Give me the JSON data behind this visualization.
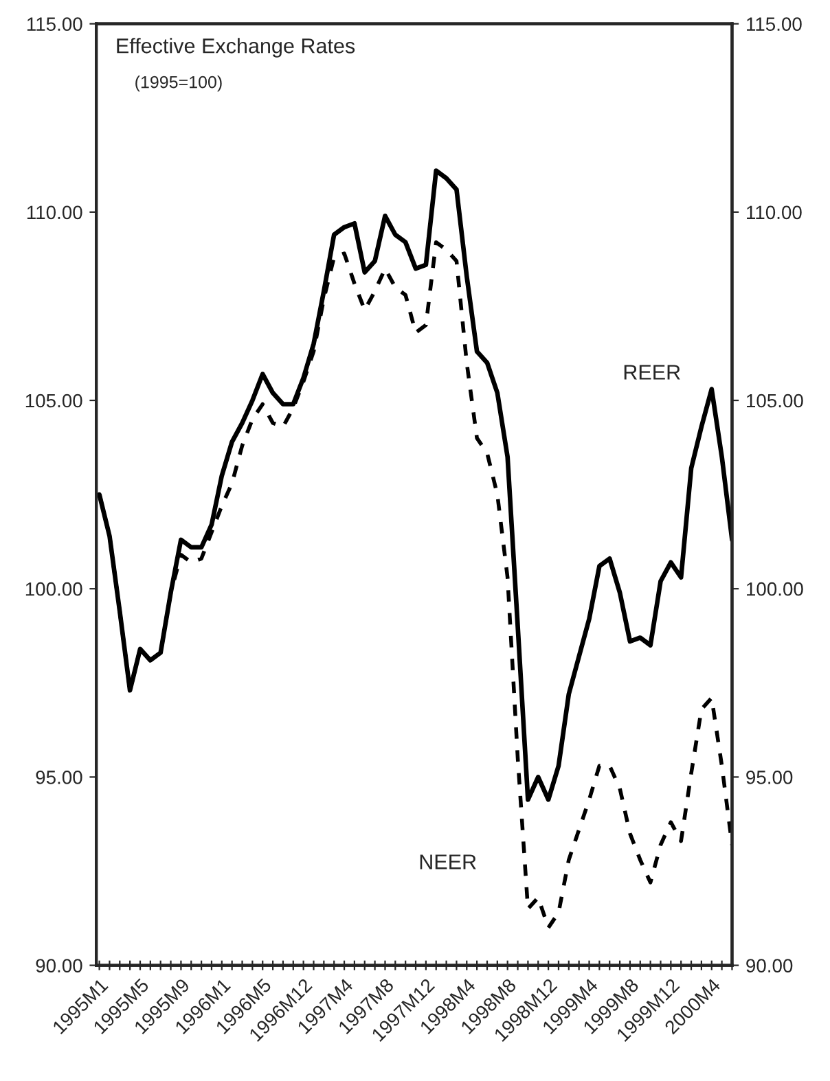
{
  "chart_data": {
    "type": "line",
    "title": "Effective Exchange Rates",
    "subtitle": "(1995=100)",
    "categories": [
      "1995M1",
      null,
      null,
      null,
      "1995M5",
      null,
      null,
      null,
      "1995M9",
      null,
      null,
      null,
      "1996M1",
      null,
      null,
      null,
      "1996M5",
      null,
      null,
      null,
      "1996M12",
      null,
      null,
      null,
      "1997M4",
      null,
      null,
      null,
      "1997M8",
      null,
      null,
      null,
      "1997M12",
      null,
      null,
      null,
      "1998M4",
      null,
      null,
      null,
      "1998M8",
      null,
      null,
      null,
      "1998M12",
      null,
      null,
      null,
      "1999M4",
      null,
      null,
      null,
      "1999M8",
      null,
      null,
      null,
      "1999M12",
      null,
      null,
      null,
      "2000M4",
      null,
      null
    ],
    "series": [
      {
        "name": "REER",
        "color": "#000000",
        "line_style": "solid",
        "values": [
          102.5,
          101.4,
          99.4,
          97.3,
          98.4,
          98.1,
          98.3,
          99.9,
          101.3,
          101.1,
          101.1,
          101.7,
          103.0,
          103.9,
          104.4,
          105.0,
          105.7,
          105.2,
          104.9,
          104.9,
          105.6,
          106.5,
          107.9,
          109.4,
          109.6,
          109.7,
          108.4,
          108.7,
          109.9,
          109.4,
          109.2,
          108.5,
          108.6,
          111.1,
          110.9,
          110.6,
          108.3,
          106.3,
          106.0,
          105.2,
          103.5,
          99.0,
          94.4,
          95.0,
          94.4,
          95.3,
          97.2,
          98.2,
          99.2,
          100.6,
          100.8,
          99.9,
          98.6,
          98.7,
          98.5,
          100.2,
          100.7,
          100.3,
          103.2,
          104.3,
          105.3,
          103.5,
          101.3
        ]
      },
      {
        "name": "NEER",
        "color": "#000000",
        "line_style": "dashed",
        "values": [
          102.5,
          101.4,
          99.4,
          97.3,
          98.4,
          98.1,
          98.3,
          99.9,
          100.9,
          100.7,
          100.8,
          101.5,
          102.2,
          102.8,
          103.8,
          104.5,
          104.9,
          104.4,
          104.3,
          104.8,
          105.5,
          106.3,
          107.7,
          108.8,
          108.9,
          108.1,
          107.4,
          107.9,
          108.5,
          108.0,
          107.8,
          106.8,
          107.0,
          109.2,
          109.0,
          108.7,
          106.0,
          104.0,
          103.6,
          102.5,
          100.3,
          95.5,
          91.5,
          91.8,
          91.0,
          91.4,
          92.8,
          93.6,
          94.4,
          95.3,
          95.3,
          94.7,
          93.5,
          92.8,
          92.2,
          93.2,
          93.8,
          93.3,
          95.1,
          96.8,
          97.1,
          95.3,
          93.2
        ]
      }
    ],
    "ylim": [
      90,
      115
    ],
    "yticks": [
      {
        "value": 90,
        "label": "90.00"
      },
      {
        "value": 95,
        "label": "95.00"
      },
      {
        "value": 100,
        "label": "100.00"
      },
      {
        "value": 105,
        "label": "105.00"
      },
      {
        "value": 110,
        "label": "110.00"
      },
      {
        "value": 115,
        "label": "115.00"
      }
    ],
    "y2lim": [
      90,
      115
    ],
    "y2ticks": [
      {
        "value": 90,
        "label": "90.00"
      },
      {
        "value": 95,
        "label": "95.00"
      },
      {
        "value": 100,
        "label": "100.00"
      },
      {
        "value": 105,
        "label": "105.00"
      },
      {
        "value": 110,
        "label": "110.00"
      },
      {
        "value": 115,
        "label": "115.00"
      }
    ],
    "grid": false,
    "legend": false,
    "marker": "none"
  }
}
